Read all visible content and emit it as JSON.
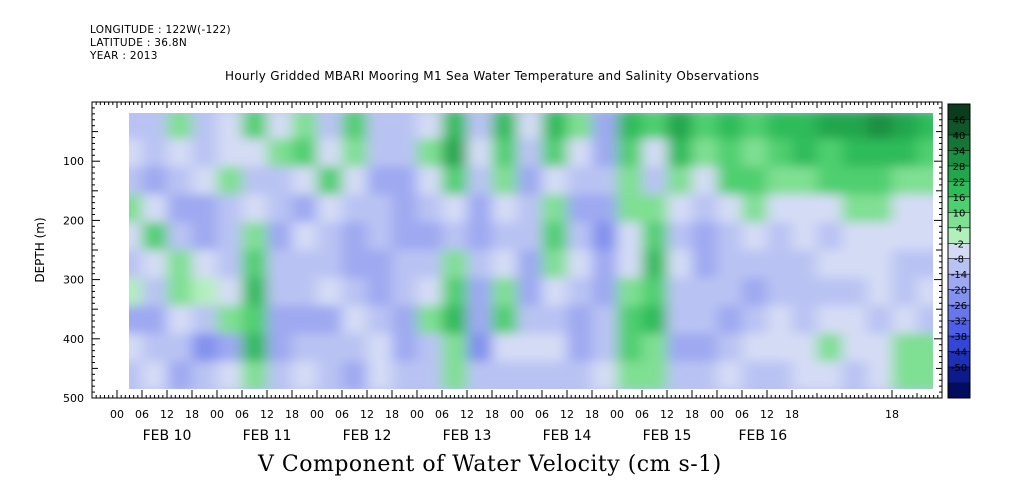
{
  "header": {
    "longitude": "LONGITUDE : 122W(-122)",
    "latitude": "LATITUDE : 36.8N",
    "year": "YEAR : 2013"
  },
  "chart_data": {
    "type": "heatmap",
    "title": "Hourly Gridded MBARI Mooring M1 Sea Water Temperature and Salinity Observations",
    "caption": "V Component of Water Velocity (cm s-1)",
    "ylabel": "DEPTH (m)",
    "ylim": [
      500,
      0
    ],
    "y_ticks": [
      100,
      200,
      300,
      400,
      500
    ],
    "x_hours_range": [
      -6,
      198
    ],
    "data_hours_range": [
      3,
      195
    ],
    "data_depth_range": [
      15,
      485
    ],
    "x_tick_labels": [
      "00",
      "06",
      "12",
      "18",
      "00",
      "06",
      "12",
      "18",
      "00",
      "06",
      "12",
      "18",
      "00",
      "06",
      "12",
      "18",
      "00",
      "06",
      "12",
      "18",
      "00",
      "06",
      "12",
      "18",
      "00",
      "06",
      "12",
      "18",
      "18"
    ],
    "x_tick_hours": [
      0,
      6,
      12,
      18,
      24,
      30,
      36,
      42,
      48,
      54,
      60,
      66,
      72,
      78,
      84,
      90,
      96,
      102,
      108,
      114,
      120,
      126,
      132,
      138,
      144,
      150,
      156,
      162,
      186
    ],
    "day_labels": [
      "FEB 10",
      "FEB 11",
      "FEB 12",
      "FEB 13",
      "FEB 14",
      "FEB 15",
      "FEB 16"
    ],
    "day_label_hours": [
      12,
      36,
      60,
      84,
      108,
      132,
      155
    ],
    "colorbar": {
      "levels": [
        46,
        40,
        34,
        28,
        22,
        16,
        10,
        4,
        -2,
        -8,
        -14,
        -20,
        -26,
        -32,
        -38,
        -44,
        -50
      ],
      "colors": [
        "#0b3d1c",
        "#10562a",
        "#157436",
        "#1b8f42",
        "#22a64d",
        "#2fbb5a",
        "#4fcf6f",
        "#7fdf93",
        "#b3efbd",
        "#d4dcf5",
        "#b9c3f3",
        "#9ea9f1",
        "#8290ee",
        "#6777ea",
        "#4d5fe4",
        "#3346d6",
        "#1e2fb8",
        "#0c1a8a",
        "#030d5e"
      ]
    },
    "columns": [
      {
        "h": 3,
        "v": [
          -12,
          -8,
          -14,
          4,
          -6,
          -10,
          -2,
          -16,
          -6,
          -12
        ]
      },
      {
        "h": 9,
        "v": [
          -14,
          -10,
          -16,
          -4,
          10,
          -8,
          -12,
          -20,
          -14,
          -8
        ]
      },
      {
        "h": 15,
        "v": [
          6,
          -6,
          -12,
          -18,
          -10,
          4,
          8,
          -6,
          -12,
          -16
        ]
      },
      {
        "h": 21,
        "v": [
          -10,
          -12,
          -6,
          -16,
          -20,
          -8,
          -2,
          -14,
          -24,
          -12
        ]
      },
      {
        "h": 27,
        "v": [
          -8,
          -4,
          8,
          -10,
          -14,
          -10,
          -6,
          4,
          -18,
          -8
        ]
      },
      {
        "h": 33,
        "v": [
          10,
          -6,
          -12,
          -6,
          6,
          14,
          18,
          12,
          16,
          8
        ]
      },
      {
        "h": 39,
        "v": [
          -6,
          4,
          -10,
          -14,
          -16,
          -12,
          -10,
          -18,
          -20,
          -14
        ]
      },
      {
        "h": 45,
        "v": [
          4,
          12,
          -8,
          -16,
          -6,
          -10,
          -14,
          -16,
          -12,
          -6
        ]
      },
      {
        "h": 51,
        "v": [
          -12,
          -8,
          10,
          -6,
          -12,
          -10,
          -6,
          -16,
          -10,
          -14
        ]
      },
      {
        "h": 57,
        "v": [
          12,
          6,
          -8,
          -12,
          -18,
          -20,
          -10,
          -6,
          -14,
          -18
        ]
      },
      {
        "h": 63,
        "v": [
          -10,
          -12,
          -18,
          -14,
          -12,
          -16,
          -20,
          -10,
          -6,
          -8
        ]
      },
      {
        "h": 69,
        "v": [
          -14,
          -10,
          -16,
          -18,
          -20,
          -12,
          -14,
          -18,
          -16,
          -12
        ]
      },
      {
        "h": 75,
        "v": [
          -6,
          4,
          -8,
          -10,
          -16,
          -12,
          -8,
          6,
          -10,
          -14
        ]
      },
      {
        "h": 81,
        "v": [
          18,
          22,
          10,
          -6,
          -10,
          4,
          12,
          16,
          8,
          4
        ]
      },
      {
        "h": 87,
        "v": [
          -10,
          -6,
          -14,
          -20,
          -18,
          -12,
          -16,
          -20,
          -22,
          -14
        ]
      },
      {
        "h": 93,
        "v": [
          20,
          14,
          6,
          -8,
          -12,
          -6,
          8,
          10,
          -6,
          -10
        ]
      },
      {
        "h": 99,
        "v": [
          -8,
          -12,
          -16,
          -14,
          -10,
          -18,
          -20,
          -14,
          -8,
          -12
        ]
      },
      {
        "h": 105,
        "v": [
          16,
          10,
          -6,
          4,
          10,
          6,
          -8,
          -12,
          -6,
          -10
        ]
      },
      {
        "h": 111,
        "v": [
          8,
          -6,
          -12,
          -16,
          -10,
          -8,
          -12,
          -16,
          -20,
          -14
        ]
      },
      {
        "h": 117,
        "v": [
          -16,
          -18,
          -14,
          -20,
          -22,
          -18,
          -16,
          -12,
          -10,
          -8
        ]
      },
      {
        "h": 123,
        "v": [
          18,
          12,
          6,
          4,
          -6,
          -8,
          6,
          10,
          12,
          8
        ]
      },
      {
        "h": 129,
        "v": [
          10,
          -6,
          -12,
          8,
          14,
          18,
          10,
          16,
          6,
          4
        ]
      },
      {
        "h": 135,
        "v": [
          24,
          16,
          8,
          -6,
          -10,
          -8,
          -12,
          -14,
          -16,
          -10
        ]
      },
      {
        "h": 141,
        "v": [
          10,
          6,
          -8,
          -14,
          -18,
          -16,
          -10,
          -14,
          -18,
          -12
        ]
      },
      {
        "h": 147,
        "v": [
          16,
          12,
          10,
          -6,
          -12,
          -10,
          -14,
          -16,
          -12,
          -8
        ]
      },
      {
        "h": 153,
        "v": [
          14,
          8,
          10,
          6,
          -8,
          -12,
          -16,
          -10,
          -6,
          -12
        ]
      },
      {
        "h": 159,
        "v": [
          18,
          12,
          8,
          -6,
          -10,
          -14,
          -12,
          -8,
          -6,
          -10
        ]
      },
      {
        "h": 165,
        "v": [
          20,
          16,
          6,
          -8,
          -6,
          -12,
          -10,
          -14,
          -8,
          -6
        ]
      },
      {
        "h": 171,
        "v": [
          22,
          14,
          10,
          -6,
          -10,
          -8,
          -12,
          -6,
          4,
          -8
        ]
      },
      {
        "h": 177,
        "v": [
          26,
          18,
          12,
          6,
          -6,
          -8,
          -10,
          -6,
          -8,
          -10
        ]
      },
      {
        "h": 183,
        "v": [
          30,
          20,
          10,
          6,
          -6,
          -4,
          -8,
          -10,
          -6,
          -8
        ]
      },
      {
        "h": 189,
        "v": [
          24,
          18,
          8,
          -6,
          -8,
          -12,
          -10,
          -6,
          6,
          4
        ]
      },
      {
        "h": 195,
        "v": [
          16,
          10,
          6,
          -8,
          -6,
          -10,
          -8,
          -12,
          8,
          6
        ]
      }
    ]
  }
}
